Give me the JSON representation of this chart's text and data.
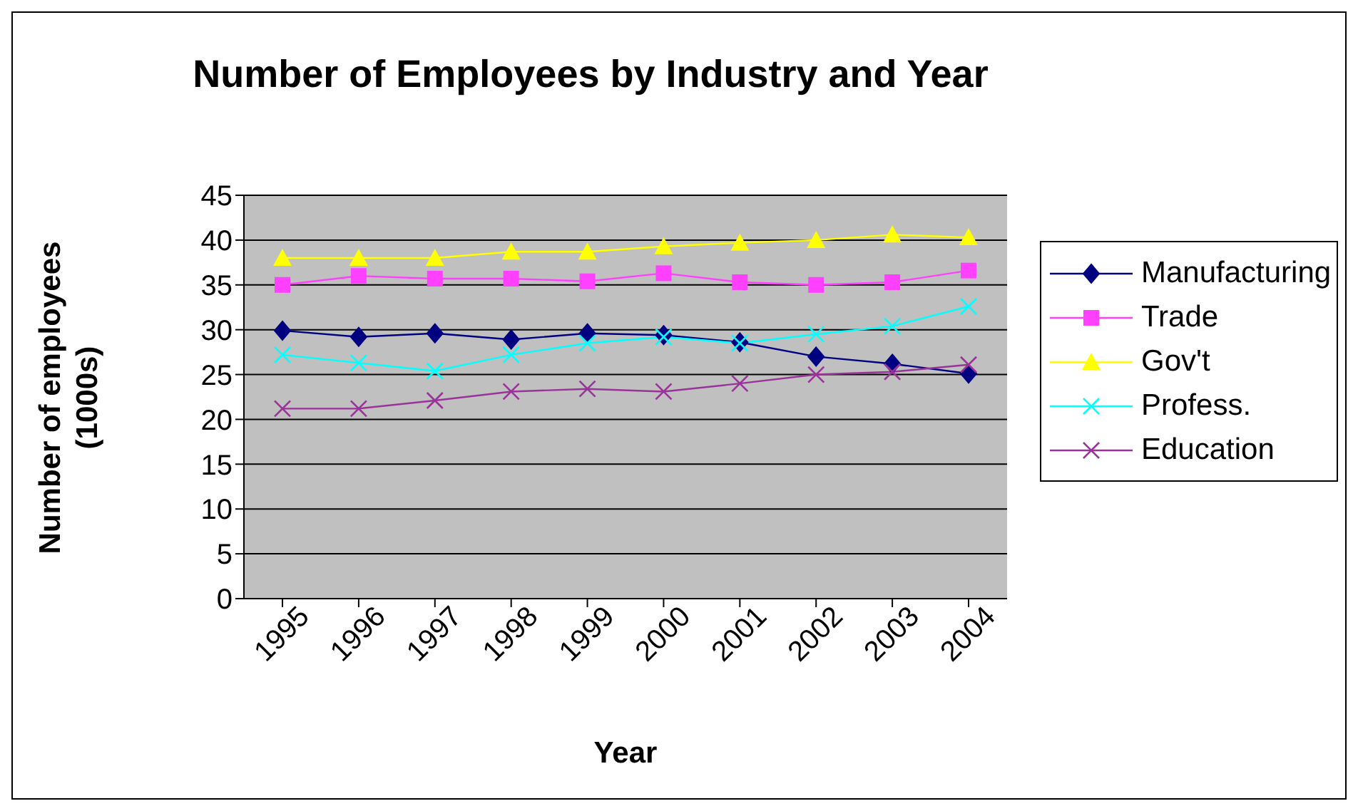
{
  "chart_data": {
    "type": "line",
    "title": "Number of Employees by Industry and Year",
    "xlabel": "Year",
    "ylabel": "Number of employees (1000s)",
    "categories": [
      "1995",
      "1996",
      "1997",
      "1998",
      "1999",
      "2000",
      "2001",
      "2002",
      "2003",
      "2004"
    ],
    "series": [
      {
        "name": "Manufacturing",
        "color": "#000080",
        "marker": "diamond",
        "values": [
          29.9,
          29.2,
          29.6,
          28.9,
          29.6,
          29.4,
          28.6,
          27.0,
          26.2,
          25.1
        ]
      },
      {
        "name": "Trade",
        "color": "#ff40ff",
        "marker": "square",
        "values": [
          35.0,
          36.0,
          35.7,
          35.7,
          35.4,
          36.3,
          35.3,
          35.0,
          35.3,
          36.6
        ]
      },
      {
        "name": "Gov't",
        "color": "#ffff00",
        "marker": "triangle",
        "values": [
          38.0,
          38.0,
          38.0,
          38.7,
          38.7,
          39.3,
          39.7,
          40.0,
          40.6,
          40.3
        ]
      },
      {
        "name": "Profess.",
        "color": "#00ffff",
        "marker": "cross",
        "values": [
          27.2,
          26.3,
          25.4,
          27.2,
          28.5,
          29.2,
          28.5,
          29.5,
          30.4,
          32.6
        ]
      },
      {
        "name": "Education",
        "color": "#993399",
        "marker": "cross",
        "values": [
          21.2,
          21.2,
          22.1,
          23.1,
          23.4,
          23.1,
          24.0,
          25.0,
          25.3,
          26.1
        ]
      }
    ],
    "ylim": [
      0,
      45
    ],
    "yticks": [
      0,
      5,
      10,
      15,
      20,
      25,
      30,
      35,
      40,
      45
    ],
    "grid": "y",
    "legend": "right"
  }
}
